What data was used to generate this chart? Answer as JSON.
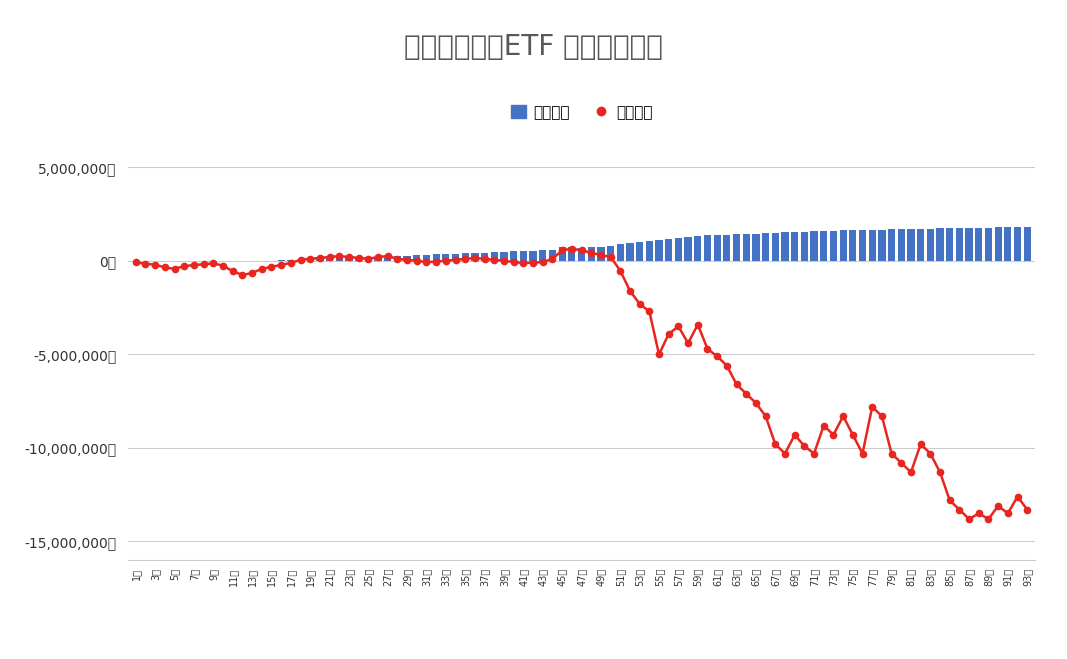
{
  "title": "トライオートETF 週別運用実績",
  "legend_realized": "実現損益",
  "legend_unrealized": "評価損益",
  "bar_color": "#4472C4",
  "line_color": "#E8251F",
  "background_color": "#FFFFFF",
  "title_color": "#595959",
  "weeks": 93,
  "realized_pnl": [
    0,
    0,
    0,
    0,
    0,
    0,
    0,
    0,
    0,
    0,
    0,
    0,
    0,
    10000,
    20000,
    30000,
    50000,
    70000,
    90000,
    110000,
    130000,
    150000,
    170000,
    190000,
    210000,
    230000,
    250000,
    270000,
    290000,
    310000,
    330000,
    350000,
    370000,
    390000,
    410000,
    430000,
    450000,
    470000,
    490000,
    510000,
    530000,
    550000,
    570000,
    610000,
    720000,
    760000,
    710000,
    730000,
    760000,
    810000,
    910000,
    960000,
    1010000,
    1060000,
    1110000,
    1160000,
    1210000,
    1260000,
    1310000,
    1360000,
    1385000,
    1405000,
    1425000,
    1445000,
    1465000,
    1485000,
    1505000,
    1525000,
    1545000,
    1565000,
    1585000,
    1605000,
    1625000,
    1635000,
    1645000,
    1655000,
    1665000,
    1675000,
    1685000,
    1695000,
    1705000,
    1715000,
    1725000,
    1735000,
    1745000,
    1755000,
    1765000,
    1775000,
    1785000,
    1795000,
    1805000,
    1815000,
    1825000
  ],
  "unrealized_pnl": [
    -80000,
    -150000,
    -200000,
    -350000,
    -420000,
    -280000,
    -220000,
    -180000,
    -130000,
    -250000,
    -550000,
    -750000,
    -650000,
    -420000,
    -320000,
    -210000,
    -110000,
    60000,
    110000,
    160000,
    210000,
    260000,
    210000,
    160000,
    110000,
    210000,
    260000,
    110000,
    60000,
    10000,
    -60000,
    -40000,
    10000,
    60000,
    110000,
    160000,
    110000,
    60000,
    10000,
    -60000,
    -110000,
    -90000,
    -60000,
    110000,
    560000,
    660000,
    560000,
    440000,
    310000,
    210000,
    -520000,
    -1600000,
    -2300000,
    -2700000,
    -5000000,
    -3900000,
    -3500000,
    -4400000,
    -3400000,
    -4700000,
    -5100000,
    -5600000,
    -6600000,
    -7100000,
    -7600000,
    -8300000,
    -9800000,
    -10300000,
    -9300000,
    -9900000,
    -10300000,
    -8800000,
    -9300000,
    -8300000,
    -9300000,
    -10300000,
    -7800000,
    -8300000,
    -10300000,
    -10800000,
    -11300000,
    -9800000,
    -10300000,
    -11300000,
    -12800000,
    -13300000,
    -13800000,
    -13500000,
    -13800000,
    -13100000,
    -13500000,
    -12600000,
    -13300000
  ]
}
